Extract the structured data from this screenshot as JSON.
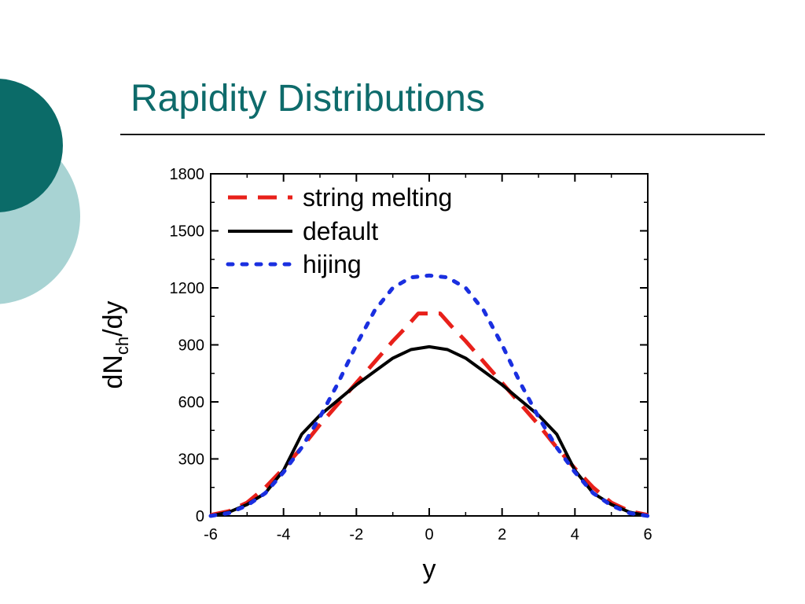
{
  "slide": {
    "title": "Rapidity Distributions"
  },
  "theme": {
    "title_color": "#0e6b6b",
    "decor_dark": "#0b6b68",
    "decor_light": "#a8d3d3"
  },
  "chart_data": {
    "type": "line",
    "xlabel": "y",
    "ylabel": "dN/dy",
    "ylabel_subscript": "ch",
    "xlim": [
      -6,
      6
    ],
    "ylim": [
      0,
      1800
    ],
    "xticks": [
      -6,
      -4,
      -2,
      0,
      2,
      4,
      6
    ],
    "yticks": [
      0,
      300,
      600,
      900,
      1200,
      1500,
      1800
    ],
    "xtick_labels": [
      "-6",
      "-4",
      "-2",
      "0",
      "2",
      "4",
      "6"
    ],
    "ytick_labels": [
      "0",
      "300",
      "600",
      "900",
      "1200",
      "1500",
      "1800"
    ],
    "grid": false,
    "legend_position": "top-left",
    "series": [
      {
        "name": "string melting",
        "color": "#e8201a",
        "style": "dashed",
        "x": [
          -6,
          -5.5,
          -5,
          -4.5,
          -4,
          -3.5,
          -3,
          -2.5,
          -2,
          -1.5,
          -1,
          -0.6,
          -0.3,
          0,
          0.3,
          0.6,
          1,
          1.5,
          2,
          2.5,
          3,
          3.5,
          4,
          4.5,
          5,
          5.5,
          6
        ],
        "y": [
          5,
          25,
          70,
          150,
          250,
          360,
          480,
          590,
          700,
          810,
          920,
          1000,
          1065,
          1065,
          1065,
          1000,
          920,
          810,
          700,
          590,
          480,
          360,
          250,
          150,
          70,
          25,
          5
        ]
      },
      {
        "name": "default",
        "color": "#000000",
        "style": "solid",
        "x": [
          -6,
          -5.5,
          -5,
          -4.5,
          -4,
          -3.5,
          -3,
          -2.5,
          -2,
          -1.5,
          -1,
          -0.5,
          0,
          0.5,
          1,
          1.5,
          2,
          2.5,
          3,
          3.5,
          4,
          4.5,
          5,
          5.5,
          6
        ],
        "y": [
          0,
          20,
          60,
          120,
          240,
          430,
          530,
          610,
          690,
          760,
          830,
          875,
          890,
          875,
          830,
          760,
          690,
          610,
          530,
          430,
          240,
          120,
          60,
          20,
          0
        ]
      },
      {
        "name": "hijing",
        "color": "#1a2fe0",
        "style": "dotted",
        "x": [
          -6,
          -5.5,
          -5,
          -4.5,
          -4,
          -3.5,
          -3,
          -2.5,
          -2,
          -1.5,
          -1,
          -0.5,
          0,
          0.5,
          1,
          1.5,
          2,
          2.5,
          3,
          3.5,
          4,
          4.5,
          5,
          5.5,
          6
        ],
        "y": [
          0,
          15,
          55,
          120,
          230,
          360,
          520,
          700,
          900,
          1080,
          1200,
          1255,
          1265,
          1255,
          1200,
          1080,
          900,
          700,
          520,
          360,
          230,
          120,
          55,
          15,
          0
        ]
      }
    ]
  }
}
